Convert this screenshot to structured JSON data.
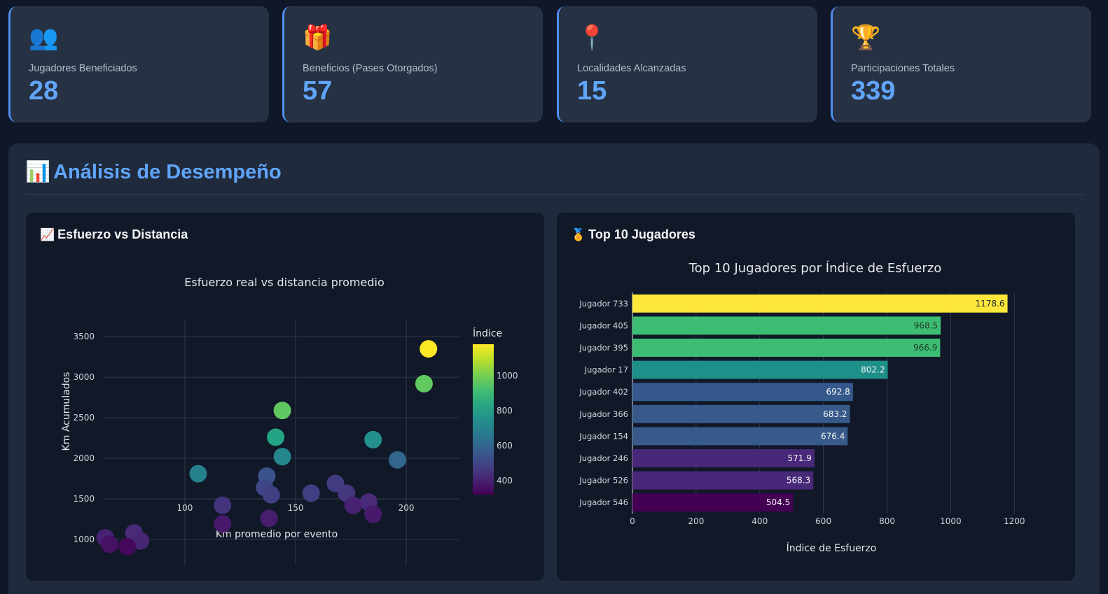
{
  "kpis": [
    {
      "icon": "👥",
      "icon_name": "users-icon",
      "label": "Jugadores Beneficiados",
      "value": "28"
    },
    {
      "icon": "🎁",
      "icon_name": "gift-icon",
      "label": "Beneficios (Pases Otorgados)",
      "value": "57"
    },
    {
      "icon": "📍",
      "icon_name": "pin-icon",
      "label": "Localidades Alcanzadas",
      "value": "15"
    },
    {
      "icon": "🏆",
      "icon_name": "trophy-icon",
      "label": "Participaciones Totales",
      "value": "339"
    }
  ],
  "section": {
    "icon": "📊",
    "title": "Análisis de Desempeño"
  },
  "cards": {
    "scatter": {
      "icon": "📈",
      "title": "Esfuerzo vs Distancia"
    },
    "bars": {
      "icon": "🏅",
      "title": "Top 10 Jugadores"
    }
  },
  "colors": {
    "accent": "#60a5fa",
    "background": "#0f1729",
    "panel": "#1f2a3c",
    "card": "#111827",
    "kpi": "#263244"
  },
  "chart_data": [
    {
      "type": "scatter",
      "title": "Esfuerzo real vs distancia promedio",
      "xlabel": "Km promedio por evento",
      "ylabel": "Km Acumulados",
      "xlim": [
        63,
        224
      ],
      "ylim": [
        680,
        3700
      ],
      "xticks": [
        100,
        150,
        200
      ],
      "yticks": [
        1000,
        1500,
        2000,
        2500,
        3000,
        3500
      ],
      "grid": true,
      "colorbar": {
        "title": "Índice",
        "range": [
          320,
          1180
        ],
        "ticks": [
          400,
          600,
          800,
          1000
        ],
        "colorscale": "viridis"
      },
      "points": [
        {
          "x": 210,
          "y": 3350,
          "c": 1178.6
        },
        {
          "x": 208,
          "y": 2920,
          "c": 968.5
        },
        {
          "x": 144,
          "y": 2590,
          "c": 966.9
        },
        {
          "x": 141,
          "y": 2260,
          "c": 820
        },
        {
          "x": 185,
          "y": 2230,
          "c": 750
        },
        {
          "x": 144,
          "y": 2020,
          "c": 720
        },
        {
          "x": 196,
          "y": 1980,
          "c": 600
        },
        {
          "x": 106,
          "y": 1810,
          "c": 700
        },
        {
          "x": 137,
          "y": 1780,
          "c": 540
        },
        {
          "x": 136,
          "y": 1640,
          "c": 500
        },
        {
          "x": 139,
          "y": 1550,
          "c": 480
        },
        {
          "x": 157,
          "y": 1570,
          "c": 480
        },
        {
          "x": 168,
          "y": 1690,
          "c": 470
        },
        {
          "x": 173,
          "y": 1570,
          "c": 460
        },
        {
          "x": 117,
          "y": 1420,
          "c": 450
        },
        {
          "x": 183,
          "y": 1460,
          "c": 420
        },
        {
          "x": 176,
          "y": 1420,
          "c": 400
        },
        {
          "x": 185,
          "y": 1310,
          "c": 380
        },
        {
          "x": 138,
          "y": 1260,
          "c": 390
        },
        {
          "x": 117,
          "y": 1190,
          "c": 380
        },
        {
          "x": 77,
          "y": 1080,
          "c": 420
        },
        {
          "x": 80,
          "y": 980,
          "c": 410
        },
        {
          "x": 64,
          "y": 1020,
          "c": 400
        },
        {
          "x": 66,
          "y": 940,
          "c": 360
        },
        {
          "x": 74,
          "y": 910,
          "c": 340
        }
      ]
    },
    {
      "type": "bar",
      "orientation": "horizontal",
      "title": "Top 10 Jugadores por Índice de Esfuerzo",
      "xlabel": "Índice de Esfuerzo",
      "xlim": [
        0,
        1250
      ],
      "xticks": [
        0,
        200,
        400,
        600,
        800,
        1000,
        1200
      ],
      "grid": true,
      "categories": [
        "Jugador 733",
        "Jugador 405",
        "Jugador 395",
        "Jugador 17",
        "Jugador 402",
        "Jugador 366",
        "Jugador 154",
        "Jugador 246",
        "Jugador 526",
        "Jugador 546"
      ],
      "values": [
        1178.6,
        968.5,
        966.9,
        802.2,
        692.8,
        683.2,
        676.4,
        571.9,
        568.3,
        504.5
      ],
      "value_labels": [
        "1178.6",
        "968.5",
        "966.9",
        "802.2",
        "692.8",
        "683.2",
        "676.4",
        "571.9",
        "568.3",
        "504.5"
      ],
      "bar_colors": [
        "#fde73a",
        "#3dbd73",
        "#3dbd73",
        "#1f8f8a",
        "#35598c",
        "#385a8b",
        "#385a8b",
        "#482878",
        "#482878",
        "#440154"
      ]
    }
  ]
}
